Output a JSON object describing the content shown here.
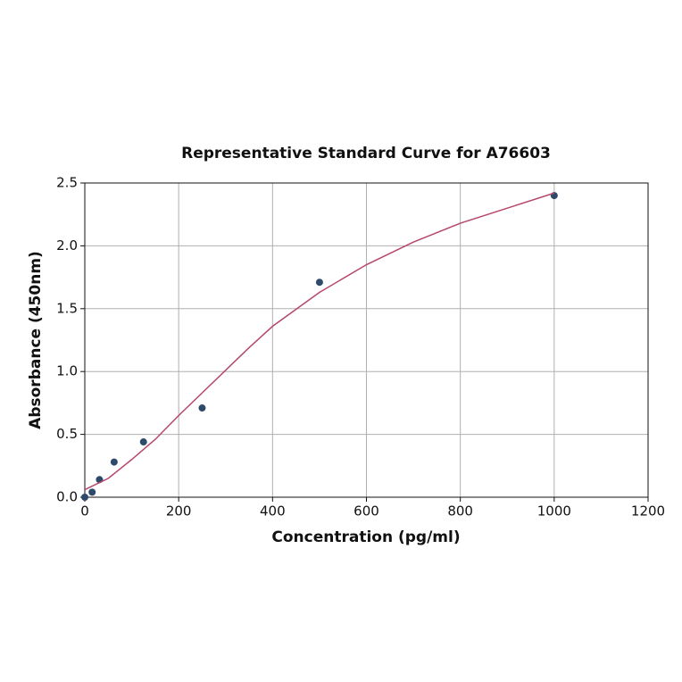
{
  "chart_data": {
    "type": "scatter",
    "title": "Representative Standard Curve for A76603",
    "x_label": "Concentration (pg/ml)",
    "y_label": "Absorbance (450nm)",
    "xlim": [
      0,
      1200
    ],
    "xticks": [
      0,
      200,
      400,
      600,
      800,
      1000,
      1200
    ],
    "ylim": [
      0,
      2.5
    ],
    "yticks": [
      {
        "value": 0,
        "label": "0.0"
      },
      0.5,
      {
        "value": 1,
        "label": "1.0"
      },
      1.5,
      {
        "value": 2,
        "label": "2.0"
      },
      2.5
    ],
    "grid": true,
    "series": [
      {
        "type": "scatter",
        "color": "#2e4a6b",
        "x": [
          0,
          15.625,
          31.25,
          62.5,
          125,
          250,
          500,
          1000
        ],
        "values": [
          0.0,
          0.04,
          0.14,
          0.28,
          0.44,
          0.71,
          1.71,
          2.4
        ]
      },
      {
        "type": "line",
        "color": "#b5476c",
        "x": [
          0,
          50,
          100,
          150,
          200,
          250,
          300,
          350,
          400,
          500,
          600,
          700,
          800,
          900,
          1000
        ],
        "values": [
          0.06,
          0.15,
          0.3,
          0.46,
          0.65,
          0.83,
          1.01,
          1.19,
          1.36,
          1.63,
          1.85,
          2.03,
          2.18,
          2.3,
          2.42
        ]
      }
    ]
  }
}
